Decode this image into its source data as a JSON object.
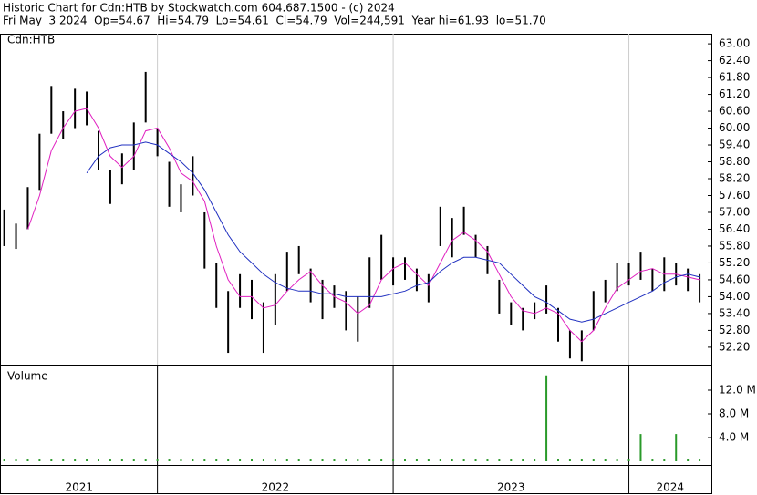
{
  "header": {
    "title": "Historic Chart for Cdn:HTB by Stockwatch.com 604.687.1500 - (c) 2024",
    "quote": "Fri May  3 2024  Op=54.67  Hi=54.79  Lo=54.61  Cl=54.79  Vol=244,591  Year hi=61.93  lo=51.70"
  },
  "chart_data": [
    {
      "type": "hilo",
      "label": "Cdn:HTB",
      "color": "#000000",
      "x": [
        2021.35,
        2021.4,
        2021.45,
        2021.5,
        2021.55,
        2021.6,
        2021.65,
        2021.7,
        2021.75,
        2021.8,
        2021.85,
        2021.9,
        2021.95,
        2022.0,
        2022.05,
        2022.1,
        2022.15,
        2022.2,
        2022.25,
        2022.3,
        2022.35,
        2022.4,
        2022.45,
        2022.5,
        2022.55,
        2022.6,
        2022.65,
        2022.7,
        2022.75,
        2022.8,
        2022.85,
        2022.9,
        2022.95,
        2023.0,
        2023.05,
        2023.1,
        2023.15,
        2023.2,
        2023.25,
        2023.3,
        2023.35,
        2023.4,
        2023.45,
        2023.5,
        2023.55,
        2023.6,
        2023.65,
        2023.7,
        2023.75,
        2023.8,
        2023.85,
        2023.9,
        2023.95,
        2024.0,
        2024.05,
        2024.1,
        2024.15,
        2024.2,
        2024.25,
        2024.3
      ],
      "high": [
        57.1,
        56.6,
        57.9,
        59.8,
        61.5,
        60.6,
        61.4,
        61.3,
        59.9,
        58.5,
        59.1,
        60.2,
        62.0,
        60.0,
        58.8,
        58.0,
        59.0,
        57.0,
        55.2,
        54.2,
        54.8,
        54.6,
        53.8,
        54.8,
        55.6,
        55.8,
        55.0,
        54.6,
        54.4,
        54.2,
        54.0,
        55.4,
        56.2,
        55.4,
        55.4,
        55.0,
        54.8,
        57.2,
        56.8,
        57.2,
        56.2,
        55.8,
        54.6,
        53.8,
        53.6,
        53.8,
        54.4,
        53.6,
        52.8,
        52.8,
        54.2,
        54.6,
        55.2,
        55.2,
        55.6,
        55.0,
        55.4,
        55.2,
        55.0,
        54.8
      ],
      "low": [
        55.8,
        55.7,
        56.4,
        57.8,
        59.8,
        59.6,
        60.0,
        60.1,
        58.5,
        57.3,
        58.0,
        58.5,
        60.2,
        59.0,
        57.2,
        57.0,
        57.6,
        55.0,
        53.6,
        52.0,
        53.6,
        53.2,
        52.0,
        53.0,
        54.2,
        54.8,
        53.8,
        53.2,
        53.6,
        52.8,
        52.4,
        53.6,
        54.6,
        54.4,
        54.6,
        54.2,
        53.8,
        55.8,
        55.4,
        56.2,
        55.4,
        54.8,
        53.4,
        53.0,
        52.8,
        53.2,
        53.4,
        52.4,
        51.8,
        51.7,
        52.8,
        53.8,
        54.2,
        54.4,
        54.6,
        54.2,
        54.2,
        54.4,
        54.2,
        53.8
      ],
      "averages": [
        {
          "color": "#e020c0",
          "values": [
            null,
            null,
            56.4,
            57.6,
            59.2,
            60.0,
            60.6,
            60.7,
            60.0,
            59.0,
            58.6,
            59.0,
            59.9,
            60.0,
            59.3,
            58.4,
            58.1,
            57.4,
            55.8,
            54.6,
            54.0,
            54.0,
            53.6,
            53.7,
            54.2,
            54.6,
            54.9,
            54.4,
            54.0,
            53.8,
            53.4,
            53.7,
            54.6,
            55.0,
            55.2,
            54.8,
            54.4,
            55.2,
            56.0,
            56.3,
            56.0,
            55.6,
            54.8,
            54.0,
            53.5,
            53.4,
            53.6,
            53.4,
            52.8,
            52.4,
            52.8,
            53.6,
            54.3,
            54.6,
            54.9,
            55.0,
            54.8,
            54.8,
            54.7,
            54.6
          ]
        },
        {
          "color": "#2030c0",
          "values": [
            null,
            null,
            null,
            null,
            null,
            null,
            null,
            58.4,
            59.0,
            59.3,
            59.4,
            59.4,
            59.5,
            59.4,
            59.1,
            58.8,
            58.4,
            57.8,
            57.0,
            56.2,
            55.6,
            55.2,
            54.8,
            54.5,
            54.3,
            54.2,
            54.2,
            54.1,
            54.1,
            54.0,
            54.0,
            54.0,
            54.0,
            54.1,
            54.2,
            54.4,
            54.5,
            54.9,
            55.2,
            55.4,
            55.4,
            55.3,
            55.2,
            54.8,
            54.4,
            54.0,
            53.8,
            53.5,
            53.2,
            53.1,
            53.2,
            53.4,
            53.6,
            53.8,
            54.0,
            54.2,
            54.5,
            54.7,
            54.8,
            54.7
          ]
        }
      ],
      "xlim": [
        2021.336,
        2024.35
      ],
      "ylim": [
        51.58,
        63.36
      ],
      "xticks": [
        2022,
        2023,
        2024
      ],
      "yticks": [
        {
          "value": 52.2,
          "label": "52.20"
        },
        {
          "value": 52.8,
          "label": "52.80"
        },
        {
          "value": 53.4,
          "label": "53.40"
        },
        {
          "value": 54.0,
          "label": "54.00"
        },
        {
          "value": 54.6,
          "label": "54.60"
        },
        {
          "value": 55.2,
          "label": "55.20"
        },
        {
          "value": 55.8,
          "label": "55.80"
        },
        {
          "value": 56.4,
          "label": "56.40"
        },
        {
          "value": 57.0,
          "label": "57.00"
        },
        {
          "value": 57.6,
          "label": "57.60"
        },
        {
          "value": 58.2,
          "label": "58.20"
        },
        {
          "value": 58.8,
          "label": "58.80"
        },
        {
          "value": 59.4,
          "label": "59.40"
        },
        {
          "value": 60.0,
          "label": "60.00"
        },
        {
          "value": 60.6,
          "label": "60.60"
        },
        {
          "value": 61.2,
          "label": "61.20"
        },
        {
          "value": 61.8,
          "label": "61.80"
        },
        {
          "value": 62.4,
          "label": "62.40"
        },
        {
          "value": 63.0,
          "label": "63.00"
        }
      ]
    },
    {
      "type": "volume",
      "label": "Volume",
      "color": "#2a9a2a",
      "values": [
        0.3,
        0.3,
        0.3,
        0.3,
        0.3,
        0.3,
        0.3,
        0.3,
        0.3,
        0.3,
        0.3,
        0.3,
        0.3,
        0.3,
        0.3,
        0.3,
        0.3,
        0.3,
        0.3,
        0.3,
        0.3,
        0.3,
        0.3,
        0.3,
        0.3,
        0.3,
        0.3,
        0.3,
        0.3,
        0.3,
        0.3,
        0.3,
        0.3,
        0.3,
        0.3,
        0.3,
        0.3,
        0.3,
        0.3,
        0.3,
        0.3,
        0.3,
        0.3,
        0.3,
        0.3,
        0.3,
        14.5,
        0.3,
        0.3,
        0.3,
        0.3,
        0.3,
        0.3,
        0.3,
        4.6,
        0.3,
        0.3,
        4.6,
        0.3,
        0.3
      ],
      "ylim": [
        0,
        16
      ],
      "yticks": [
        {
          "value": 4,
          "label": "4.0 M"
        },
        {
          "value": 8,
          "label": "8.0 M"
        },
        {
          "value": 12,
          "label": "12.0 M"
        }
      ],
      "x_labels": [
        2021,
        2022,
        2023,
        2024
      ]
    }
  ]
}
